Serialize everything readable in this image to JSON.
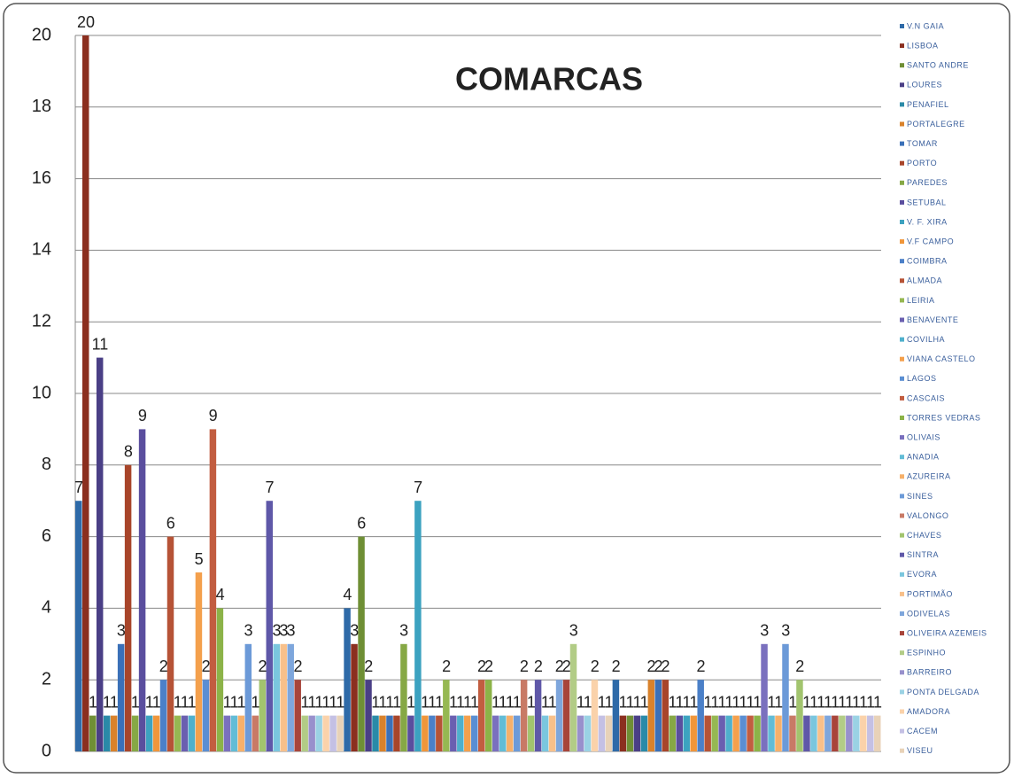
{
  "chart_data": {
    "type": "bar",
    "title": "COMARCAS",
    "categories": [
      null,
      null,
      null
    ],
    "ylim": [
      0,
      20
    ],
    "yticks": [
      0,
      2,
      4,
      6,
      8,
      10,
      12,
      14,
      16,
      18,
      20
    ],
    "grid": true,
    "legend": "right",
    "series": [
      {
        "name": "V.N GAIA",
        "color": "#2e6aa8",
        "values": [
          7,
          4,
          2
        ]
      },
      {
        "name": "LISBOA",
        "color": "#8b2f1f",
        "values": [
          20,
          3,
          1
        ]
      },
      {
        "name": "SANTO ANDRE",
        "color": "#6f8f35",
        "values": [
          1,
          6,
          1
        ]
      },
      {
        "name": "LOURES",
        "color": "#4a3f86",
        "values": [
          11,
          2,
          1
        ]
      },
      {
        "name": "PENAFIEL",
        "color": "#2a8aa8",
        "values": [
          1,
          1,
          1
        ]
      },
      {
        "name": "PORTALEGRE",
        "color": "#d9822b",
        "values": [
          1,
          1,
          2
        ]
      },
      {
        "name": "TOMAR",
        "color": "#3a70b8",
        "values": [
          3,
          1,
          2
        ]
      },
      {
        "name": "PORTO",
        "color": "#a8452a",
        "values": [
          8,
          1,
          2
        ]
      },
      {
        "name": "PAREDES",
        "color": "#86a845",
        "values": [
          1,
          3,
          1
        ]
      },
      {
        "name": "SETUBAL",
        "color": "#5a4e9e",
        "values": [
          9,
          1,
          1
        ]
      },
      {
        "name": "V. F. XIRA",
        "color": "#3ca2c0",
        "values": [
          1,
          7,
          1
        ]
      },
      {
        "name": "V.F CAMPO",
        "color": "#f0963a",
        "values": [
          1,
          1,
          1
        ]
      },
      {
        "name": "COIMBRA",
        "color": "#4b80c8",
        "values": [
          2,
          1,
          2
        ]
      },
      {
        "name": "ALMADA",
        "color": "#b65336",
        "values": [
          6,
          1,
          1
        ]
      },
      {
        "name": "LEIRIA",
        "color": "#96b852",
        "values": [
          1,
          2,
          1
        ]
      },
      {
        "name": "BENAVENTE",
        "color": "#6a5fb0",
        "values": [
          1,
          1,
          1
        ]
      },
      {
        "name": "COVILHA",
        "color": "#4fb0cc",
        "values": [
          1,
          1,
          1
        ]
      },
      {
        "name": "VIANA CASTELO",
        "color": "#f4a04c",
        "values": [
          5,
          1,
          1
        ]
      },
      {
        "name": "LAGOS",
        "color": "#5a8ed2",
        "values": [
          2,
          1,
          1
        ]
      },
      {
        "name": "CASCAIS",
        "color": "#c25d40",
        "values": [
          9,
          2,
          1
        ]
      },
      {
        "name": "TORRES VEDRAS",
        "color": "#8cb348",
        "values": [
          4,
          2,
          1
        ]
      },
      {
        "name": "OLIVAIS",
        "color": "#7a70be",
        "values": [
          1,
          1,
          3
        ]
      },
      {
        "name": "ANADIA",
        "color": "#62bcd6",
        "values": [
          1,
          1,
          1
        ]
      },
      {
        "name": "AZUREIRA",
        "color": "#f6b06a",
        "values": [
          1,
          1,
          1
        ]
      },
      {
        "name": "SINES",
        "color": "#6c9ad8",
        "values": [
          3,
          1,
          3
        ]
      },
      {
        "name": "VALONGO",
        "color": "#c87a66",
        "values": [
          1,
          2,
          1
        ]
      },
      {
        "name": "CHAVES",
        "color": "#a2c46e",
        "values": [
          2,
          1,
          2
        ]
      },
      {
        "name": "SINTRA",
        "color": "#5f58a8",
        "values": [
          7,
          2,
          1
        ]
      },
      {
        "name": "EVORA",
        "color": "#7ac6de",
        "values": [
          3,
          1,
          1
        ]
      },
      {
        "name": "PORTIMÃO",
        "color": "#f8c08a",
        "values": [
          3,
          1,
          1
        ]
      },
      {
        "name": "ODIVELAS",
        "color": "#7ea6dc",
        "values": [
          3,
          2,
          1
        ]
      },
      {
        "name": "OLIVEIRA AZEMEIS",
        "color": "#a8443a",
        "values": [
          2,
          2,
          1
        ]
      },
      {
        "name": "ESPINHO",
        "color": "#b2cc86",
        "values": [
          1,
          3,
          1
        ]
      },
      {
        "name": "BARREIRO",
        "color": "#9890cc",
        "values": [
          1,
          1,
          1
        ]
      },
      {
        "name": "PONTA DELGADA",
        "color": "#9ad2e4",
        "values": [
          1,
          1,
          1
        ]
      },
      {
        "name": "AMADORA",
        "color": "#fad2aa",
        "values": [
          1,
          2,
          1
        ]
      },
      {
        "name": "CACEM",
        "color": "#c4c0e4",
        "values": [
          1,
          1,
          1
        ]
      },
      {
        "name": "VISEU",
        "color": "#e8d2b8",
        "values": [
          1,
          1,
          1
        ]
      }
    ]
  }
}
